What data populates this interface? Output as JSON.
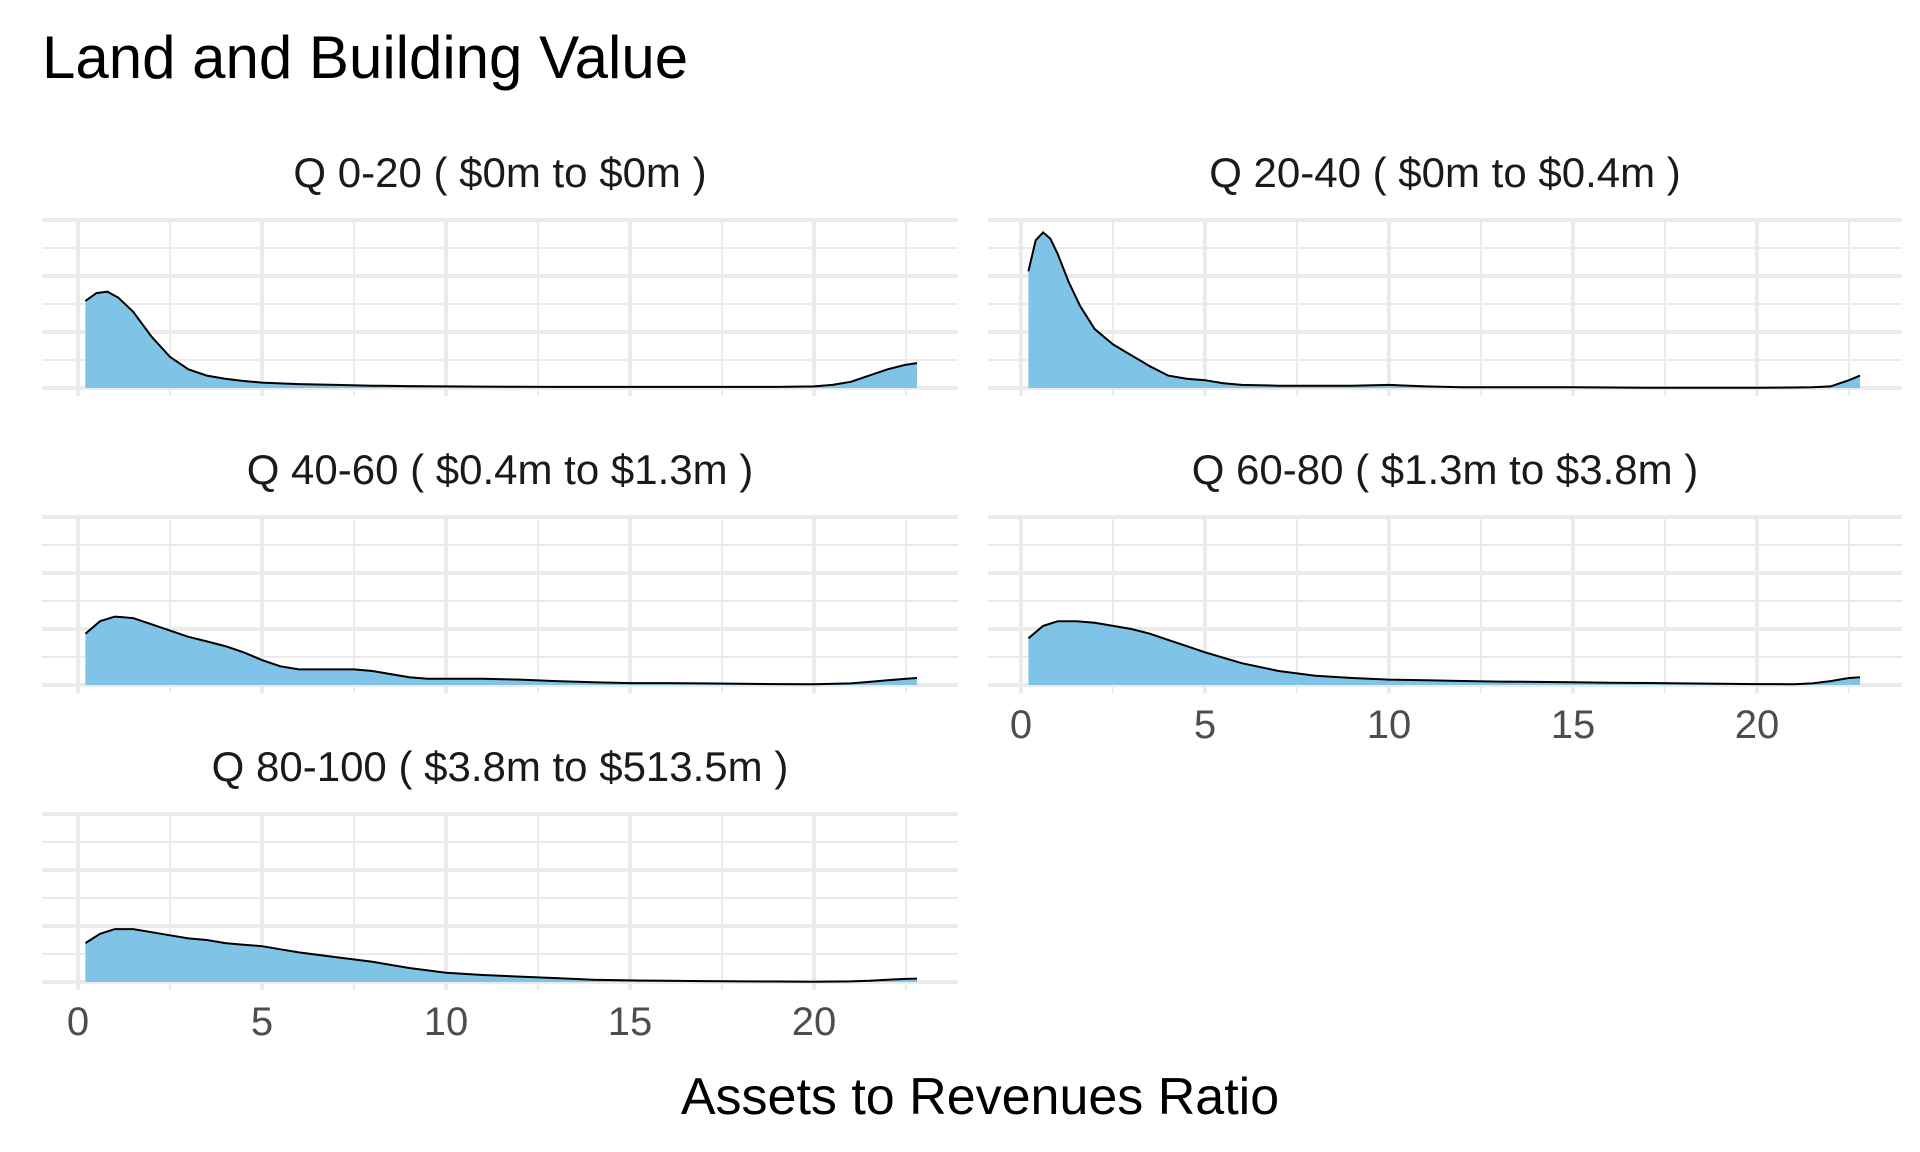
{
  "chart_data": {
    "type": "area",
    "title": "Land and Building Value",
    "xlabel": "Assets to Revenues Ratio",
    "ylabel": "",
    "xlim": [
      0,
      23
    ],
    "xticks": [
      0,
      5,
      10,
      15,
      20
    ],
    "grid": true,
    "colors": {
      "fill": "#7FC4E6",
      "stroke": "#000000",
      "grid": "#ebebeb"
    },
    "panels": [
      {
        "label": "Q 0-20   ( $0m to $0m )",
        "x": [
          0.2,
          0.5,
          0.8,
          1.1,
          1.5,
          2,
          2.5,
          3,
          3.5,
          4,
          4.5,
          5,
          6,
          7,
          8,
          9,
          10,
          11,
          12,
          13,
          14,
          15,
          16,
          17,
          18,
          19,
          20,
          20.5,
          21,
          21.5,
          22,
          22.5,
          22.8
        ],
        "y": [
          0.56,
          0.61,
          0.62,
          0.58,
          0.49,
          0.33,
          0.2,
          0.12,
          0.08,
          0.06,
          0.045,
          0.035,
          0.025,
          0.02,
          0.015,
          0.012,
          0.01,
          0.009,
          0.008,
          0.007,
          0.007,
          0.007,
          0.007,
          0.007,
          0.007,
          0.007,
          0.01,
          0.02,
          0.04,
          0.08,
          0.12,
          0.15,
          0.16
        ]
      },
      {
        "label": "Q 20-40   ( $0m to $0.4m )",
        "x": [
          0.2,
          0.4,
          0.6,
          0.8,
          1,
          1.3,
          1.6,
          2,
          2.5,
          3,
          3.5,
          4,
          4.5,
          5,
          5.5,
          6,
          7,
          8,
          9,
          10,
          11,
          12,
          13,
          14,
          15,
          16,
          17,
          18,
          19,
          20,
          21,
          21.5,
          22,
          22.5,
          22.8
        ],
        "y": [
          0.75,
          0.95,
          1.0,
          0.96,
          0.86,
          0.68,
          0.53,
          0.38,
          0.28,
          0.21,
          0.14,
          0.08,
          0.06,
          0.05,
          0.03,
          0.02,
          0.015,
          0.015,
          0.015,
          0.02,
          0.01,
          0.005,
          0.005,
          0.005,
          0.005,
          0.003,
          0.002,
          0.002,
          0.002,
          0.002,
          0.003,
          0.005,
          0.01,
          0.05,
          0.08
        ]
      },
      {
        "label": "Q 40-60   ( $0.4m to $1.3m )",
        "x": [
          0.2,
          0.6,
          1,
          1.5,
          2,
          2.5,
          3,
          3.5,
          4,
          4.5,
          5,
          5.5,
          6,
          6.5,
          7,
          7.5,
          8,
          8.5,
          9,
          9.5,
          10,
          11,
          12,
          13,
          14,
          15,
          16,
          17,
          18,
          19,
          20,
          21,
          21.5,
          22,
          22.5,
          22.8
        ],
        "y": [
          0.33,
          0.41,
          0.44,
          0.43,
          0.39,
          0.35,
          0.31,
          0.28,
          0.25,
          0.21,
          0.16,
          0.12,
          0.1,
          0.1,
          0.1,
          0.1,
          0.09,
          0.07,
          0.05,
          0.04,
          0.04,
          0.04,
          0.035,
          0.025,
          0.018,
          0.012,
          0.012,
          0.01,
          0.008,
          0.006,
          0.005,
          0.01,
          0.02,
          0.03,
          0.04,
          0.045
        ]
      },
      {
        "label": "Q 60-80   ( $1.3m to $3.8m )",
        "x": [
          0.2,
          0.6,
          1,
          1.5,
          2,
          2.5,
          3,
          3.5,
          4,
          4.5,
          5,
          6,
          7,
          8,
          9,
          10,
          11,
          12,
          13,
          14,
          15,
          16,
          17,
          18,
          19,
          20,
          21,
          21.5,
          22,
          22.5,
          22.8
        ],
        "y": [
          0.3,
          0.38,
          0.41,
          0.41,
          0.4,
          0.38,
          0.36,
          0.33,
          0.29,
          0.25,
          0.21,
          0.14,
          0.09,
          0.06,
          0.045,
          0.035,
          0.03,
          0.026,
          0.022,
          0.02,
          0.018,
          0.015,
          0.013,
          0.01,
          0.008,
          0.006,
          0.005,
          0.01,
          0.025,
          0.045,
          0.05
        ]
      },
      {
        "label": "Q 80-100   ( $3.8m to $513.5m )",
        "x": [
          0.2,
          0.6,
          1,
          1.5,
          2,
          2.5,
          3,
          3.5,
          4,
          4.5,
          5,
          5.5,
          6,
          7,
          8,
          9,
          10,
          11,
          12,
          13,
          14,
          15,
          16,
          17,
          18,
          19,
          20,
          21,
          21.5,
          22,
          22.5,
          22.8
        ],
        "y": [
          0.25,
          0.31,
          0.34,
          0.34,
          0.32,
          0.3,
          0.28,
          0.27,
          0.25,
          0.24,
          0.23,
          0.21,
          0.19,
          0.16,
          0.13,
          0.09,
          0.06,
          0.045,
          0.035,
          0.025,
          0.015,
          0.01,
          0.008,
          0.006,
          0.004,
          0.003,
          0.002,
          0.004,
          0.008,
          0.015,
          0.02,
          0.022
        ]
      }
    ]
  }
}
